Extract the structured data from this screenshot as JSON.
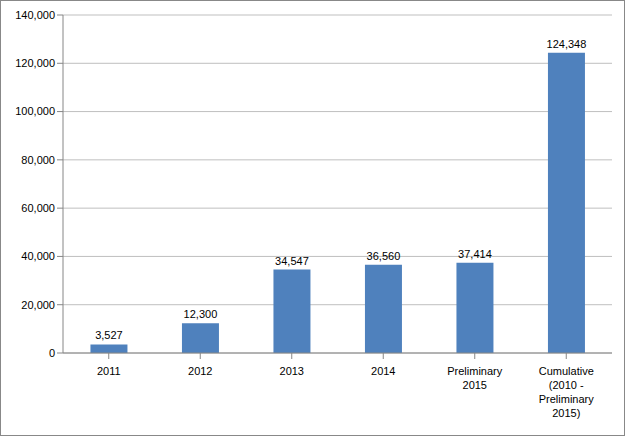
{
  "chart_data": {
    "type": "bar",
    "categories": [
      "2011",
      "2012",
      "2013",
      "2014",
      "Preliminary 2015",
      "Cumulative (2010 - Preliminary 2015)"
    ],
    "values": [
      3527,
      12300,
      34547,
      36560,
      37414,
      124348
    ],
    "value_labels": [
      "3,527",
      "12,300",
      "34,547",
      "36,560",
      "37,414",
      "124,348"
    ],
    "color": "#4f81bd",
    "ylim": [
      0,
      140000
    ],
    "yticks": [
      0,
      {
        "value": 20000,
        "label": "20,000"
      },
      {
        "value": 40000,
        "label": "40,000"
      },
      {
        "value": 60000,
        "label": "60,000"
      },
      {
        "value": 80000,
        "label": "80,000"
      },
      {
        "value": 100000,
        "label": "100,000"
      },
      {
        "value": 120000,
        "label": "120,000"
      },
      {
        "value": 140000,
        "label": "140,000"
      }
    ],
    "grid": true,
    "data_labels": true
  }
}
